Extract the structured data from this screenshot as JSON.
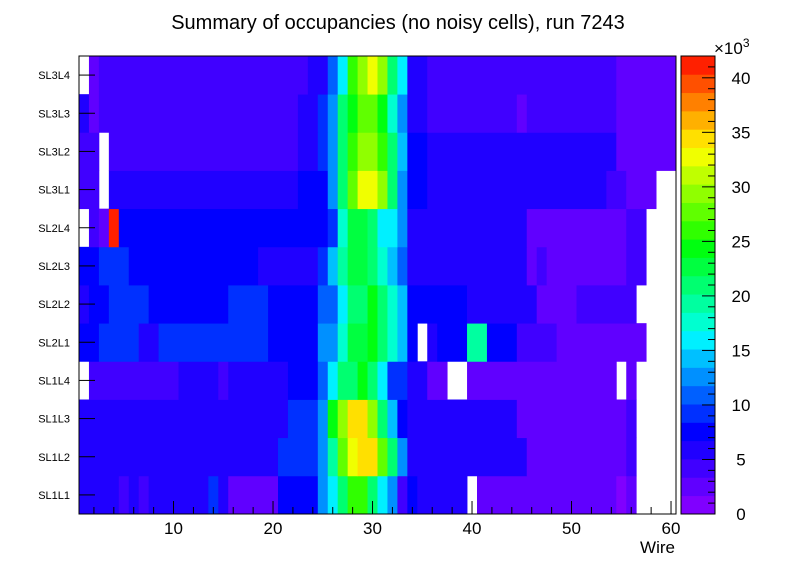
{
  "chart_data": {
    "type": "heatmap",
    "title": "Summary of occupancies (no noisy cells), run 7243",
    "xlabel": "Wire",
    "ylabel": "",
    "x_range": [
      0.5,
      60.5
    ],
    "x_ticks": [
      10,
      20,
      30,
      40,
      50,
      60
    ],
    "rows": [
      "SL1L1",
      "SL1L2",
      "SL1L3",
      "SL1L4",
      "SL2L1",
      "SL2L2",
      "SL2L3",
      "SL2L4",
      "SL3L1",
      "SL3L2",
      "SL3L3",
      "SL3L4"
    ],
    "z_range": [
      0,
      42000
    ],
    "z_ticks": [
      0,
      5,
      10,
      15,
      20,
      25,
      30,
      35,
      40
    ],
    "z_exponent_label": "×10",
    "z_exponent_power": "3",
    "palette": [
      "#8000ff",
      "#6000ff",
      "#4000ff",
      "#2000ff",
      "#0000ff",
      "#0030ff",
      "#0060ff",
      "#0090ff",
      "#00c0ff",
      "#00f0ff",
      "#00ffd0",
      "#00ffa0",
      "#00ff70",
      "#00ff40",
      "#00ff10",
      "#30ff00",
      "#60ff00",
      "#90ff00",
      "#c0ff00",
      "#f0ff00",
      "#ffe000",
      "#ffb000",
      "#ff8000",
      "#ff5000",
      "#ff2000"
    ],
    "segments": {
      "SL1L1": [
        [
          1,
          4,
          3
        ],
        [
          5,
          5,
          2
        ],
        [
          6,
          6,
          3
        ],
        [
          7,
          7,
          2
        ],
        [
          8,
          13,
          3
        ],
        [
          14,
          14,
          5
        ],
        [
          15,
          15,
          3
        ],
        [
          16,
          20,
          1
        ],
        [
          21,
          24,
          4
        ],
        [
          25,
          25,
          7
        ],
        [
          26,
          26,
          9
        ],
        [
          27,
          27,
          12
        ],
        [
          28,
          29,
          15
        ],
        [
          30,
          30,
          12
        ],
        [
          31,
          31,
          9
        ],
        [
          32,
          32,
          7
        ],
        [
          33,
          33,
          2
        ],
        [
          34,
          34,
          4
        ],
        [
          35,
          39,
          3
        ],
        [
          40,
          40,
          -1
        ],
        [
          41,
          54,
          1
        ],
        [
          55,
          55,
          0
        ],
        [
          56,
          56,
          1
        ],
        [
          57,
          60,
          -1
        ]
      ],
      "SL1L2": [
        [
          1,
          20,
          3
        ],
        [
          21,
          24,
          5
        ],
        [
          25,
          25,
          7
        ],
        [
          26,
          26,
          11
        ],
        [
          27,
          27,
          16
        ],
        [
          28,
          28,
          19
        ],
        [
          29,
          30,
          20
        ],
        [
          31,
          31,
          16
        ],
        [
          32,
          32,
          12
        ],
        [
          33,
          33,
          7
        ],
        [
          34,
          45,
          3
        ],
        [
          46,
          55,
          1
        ],
        [
          56,
          56,
          2
        ],
        [
          57,
          60,
          -1
        ]
      ],
      "SL1L3": [
        [
          1,
          21,
          3
        ],
        [
          22,
          24,
          5
        ],
        [
          25,
          25,
          7
        ],
        [
          26,
          26,
          14
        ],
        [
          27,
          27,
          17
        ],
        [
          28,
          29,
          20
        ],
        [
          30,
          30,
          17
        ],
        [
          31,
          31,
          12
        ],
        [
          32,
          32,
          8
        ],
        [
          33,
          33,
          4
        ],
        [
          34,
          44,
          3
        ],
        [
          45,
          55,
          1
        ],
        [
          56,
          56,
          2
        ],
        [
          57,
          60,
          -1
        ]
      ],
      "SL1L4": [
        [
          1,
          1,
          -1
        ],
        [
          2,
          10,
          2
        ],
        [
          11,
          14,
          3
        ],
        [
          15,
          15,
          2
        ],
        [
          16,
          21,
          3
        ],
        [
          22,
          24,
          4
        ],
        [
          25,
          25,
          6
        ],
        [
          26,
          26,
          9
        ],
        [
          27,
          28,
          12
        ],
        [
          29,
          29,
          14
        ],
        [
          30,
          30,
          12
        ],
        [
          31,
          31,
          9
        ],
        [
          32,
          33,
          5
        ],
        [
          34,
          35,
          3
        ],
        [
          36,
          37,
          1
        ],
        [
          38,
          39,
          -1
        ],
        [
          40,
          54,
          1
        ],
        [
          55,
          55,
          -1
        ],
        [
          56,
          56,
          1
        ],
        [
          57,
          60,
          -1
        ]
      ],
      "SL2L1": [
        [
          1,
          2,
          4
        ],
        [
          3,
          6,
          5
        ],
        [
          7,
          8,
          3
        ],
        [
          9,
          19,
          5
        ],
        [
          20,
          24,
          4
        ],
        [
          25,
          26,
          7
        ],
        [
          27,
          27,
          10
        ],
        [
          28,
          29,
          13
        ],
        [
          30,
          30,
          14
        ],
        [
          31,
          31,
          12
        ],
        [
          32,
          32,
          10
        ],
        [
          33,
          33,
          8
        ],
        [
          34,
          34,
          4
        ],
        [
          35,
          35,
          -1
        ],
        [
          36,
          36,
          3
        ],
        [
          37,
          39,
          4
        ],
        [
          40,
          41,
          11
        ],
        [
          42,
          44,
          4
        ],
        [
          45,
          48,
          2
        ],
        [
          49,
          50,
          1
        ],
        [
          51,
          57,
          1
        ],
        [
          58,
          60,
          -1
        ]
      ],
      "SL2L2": [
        [
          1,
          1,
          3
        ],
        [
          2,
          3,
          4
        ],
        [
          4,
          7,
          5
        ],
        [
          8,
          15,
          4
        ],
        [
          16,
          19,
          5
        ],
        [
          20,
          24,
          4
        ],
        [
          25,
          26,
          6
        ],
        [
          27,
          27,
          9
        ],
        [
          28,
          29,
          12
        ],
        [
          30,
          30,
          14
        ],
        [
          31,
          31,
          12
        ],
        [
          32,
          32,
          10
        ],
        [
          33,
          33,
          8
        ],
        [
          34,
          35,
          4
        ],
        [
          36,
          39,
          4
        ],
        [
          40,
          46,
          3
        ],
        [
          47,
          48,
          1
        ],
        [
          49,
          50,
          1
        ],
        [
          51,
          56,
          2
        ],
        [
          57,
          58,
          -1
        ],
        [
          59,
          60,
          -1
        ]
      ],
      "SL2L3": [
        [
          1,
          2,
          4
        ],
        [
          3,
          5,
          5
        ],
        [
          6,
          18,
          4
        ],
        [
          19,
          24,
          3
        ],
        [
          25,
          25,
          5
        ],
        [
          26,
          26,
          8
        ],
        [
          27,
          27,
          11
        ],
        [
          28,
          29,
          13
        ],
        [
          30,
          30,
          12
        ],
        [
          31,
          31,
          10
        ],
        [
          32,
          32,
          8
        ],
        [
          33,
          33,
          6
        ],
        [
          34,
          35,
          3
        ],
        [
          36,
          45,
          3
        ],
        [
          46,
          46,
          1
        ],
        [
          47,
          47,
          2
        ],
        [
          48,
          55,
          1
        ],
        [
          56,
          57,
          2
        ],
        [
          58,
          60,
          -1
        ]
      ],
      "SL2L4": [
        [
          1,
          1,
          -1
        ],
        [
          2,
          2,
          2
        ],
        [
          3,
          3,
          1
        ],
        [
          4,
          4,
          24
        ],
        [
          5,
          25,
          4
        ],
        [
          26,
          26,
          5
        ],
        [
          27,
          27,
          10
        ],
        [
          28,
          29,
          13
        ],
        [
          30,
          30,
          12
        ],
        [
          31,
          32,
          9
        ],
        [
          33,
          33,
          7
        ],
        [
          34,
          35,
          3
        ],
        [
          36,
          45,
          3
        ],
        [
          46,
          55,
          1
        ],
        [
          56,
          57,
          2
        ],
        [
          58,
          60,
          -1
        ]
      ],
      "SL3L1": [
        [
          1,
          2,
          2
        ],
        [
          3,
          3,
          -1
        ],
        [
          4,
          22,
          3
        ],
        [
          23,
          25,
          4
        ],
        [
          26,
          26,
          7
        ],
        [
          27,
          27,
          12
        ],
        [
          28,
          28,
          16
        ],
        [
          29,
          30,
          19
        ],
        [
          31,
          31,
          17
        ],
        [
          32,
          32,
          12
        ],
        [
          33,
          33,
          7
        ],
        [
          34,
          35,
          4
        ],
        [
          36,
          53,
          3
        ],
        [
          54,
          55,
          2
        ],
        [
          56,
          58,
          1
        ],
        [
          59,
          60,
          -1
        ]
      ],
      "SL3L2": [
        [
          1,
          2,
          2
        ],
        [
          3,
          3,
          -1
        ],
        [
          4,
          22,
          2
        ],
        [
          23,
          24,
          3
        ],
        [
          25,
          25,
          5
        ],
        [
          26,
          26,
          7
        ],
        [
          27,
          27,
          12
        ],
        [
          28,
          28,
          15
        ],
        [
          29,
          30,
          17
        ],
        [
          31,
          31,
          15
        ],
        [
          32,
          32,
          12
        ],
        [
          33,
          33,
          8
        ],
        [
          34,
          35,
          4
        ],
        [
          36,
          54,
          3
        ],
        [
          55,
          60,
          1
        ]
      ],
      "SL3L3": [
        [
          1,
          1,
          3
        ],
        [
          2,
          2,
          1
        ],
        [
          3,
          22,
          2
        ],
        [
          23,
          24,
          3
        ],
        [
          25,
          25,
          5
        ],
        [
          26,
          26,
          7
        ],
        [
          27,
          27,
          12
        ],
        [
          28,
          28,
          14
        ],
        [
          29,
          30,
          16
        ],
        [
          31,
          31,
          14
        ],
        [
          32,
          32,
          10
        ],
        [
          33,
          33,
          7
        ],
        [
          34,
          35,
          3
        ],
        [
          36,
          44,
          2
        ],
        [
          45,
          45,
          1
        ],
        [
          46,
          54,
          2
        ],
        [
          55,
          60,
          1
        ]
      ],
      "SL3L4": [
        [
          1,
          1,
          -1
        ],
        [
          2,
          2,
          1
        ],
        [
          3,
          23,
          2
        ],
        [
          24,
          25,
          3
        ],
        [
          26,
          26,
          6
        ],
        [
          27,
          27,
          9
        ],
        [
          28,
          28,
          15
        ],
        [
          29,
          29,
          17
        ],
        [
          30,
          30,
          19
        ],
        [
          31,
          31,
          17
        ],
        [
          32,
          32,
          12
        ],
        [
          33,
          33,
          9
        ],
        [
          34,
          35,
          3
        ],
        [
          36,
          54,
          2
        ],
        [
          55,
          60,
          1
        ]
      ]
    }
  }
}
